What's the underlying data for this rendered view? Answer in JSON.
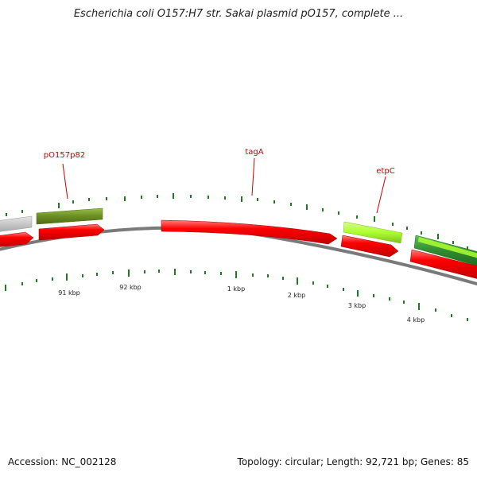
{
  "title": "Escherichia coli O157:H7 str. Sakai plasmid pO157, complete ...",
  "accession": "Accession: NC_002128",
  "summary": "Topology: circular; Length: 92,721 bp; Genes: 85",
  "gene_labels": {
    "g1": "pO157p82",
    "g2": "tagA",
    "g3": "etpC"
  },
  "scale_labels": {
    "k91": "91 kbp",
    "k92": "92 kbp",
    "k1": "1 kbp",
    "k2": "2 kbp",
    "k3": "3 kbp",
    "k4": "4 kbp"
  },
  "colors": {
    "forward_gene": "#ff0000",
    "backbone": "#808080",
    "label": "#cc0000",
    "ticks": "#1e7a1e",
    "olive_gene": "#6b8e23",
    "lime_gene": "#adff2f",
    "green_gene": "#2e8b2e",
    "grey_gene": "#c8c8c8"
  }
}
